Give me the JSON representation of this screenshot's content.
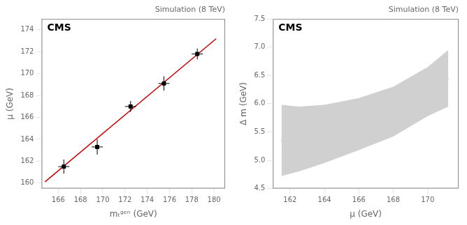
{
  "chart_data": [
    {
      "type": "scatter",
      "title": "Simulation (8 TeV)",
      "annotations": [
        "CMS"
      ],
      "x_label": "mₜᵍᵉⁿ (GeV)",
      "y_label": "μ (GeV)",
      "series": [
        {
          "type": "scatter",
          "marker": "square",
          "color": "#000000",
          "x": [
            166.5,
            169.5,
            172.5,
            175.5,
            178.5
          ],
          "values": [
            161.5,
            163.3,
            167.0,
            169.1,
            171.8
          ],
          "xerr": [
            0.5,
            0.5,
            0.5,
            0.5,
            0.5
          ],
          "yerr": [
            0.65,
            0.7,
            0.5,
            0.65,
            0.5
          ]
        },
        {
          "type": "line",
          "line_style": "solid",
          "color": "#cc0000",
          "x": [
            164.8,
            180.2
          ],
          "values": [
            160.1,
            173.2
          ]
        }
      ],
      "xlim": [
        164.5,
        181.0
      ],
      "ylim": [
        159.5,
        175.0
      ],
      "xticks": [
        166,
        168,
        170,
        172,
        174,
        176,
        178,
        180
      ],
      "yticks": [
        160,
        162,
        164,
        166,
        168,
        170,
        172,
        174
      ],
      "grid": false
    },
    {
      "type": "line",
      "title": "Simulation (8 TeV)",
      "annotations": [
        "CMS"
      ],
      "x_label": "μ (GeV)",
      "y_label": "Δ m (GeV)",
      "series": [
        {
          "type": "band",
          "color": "#d0d0d0",
          "x": [
            161.5,
            162.5,
            164.0,
            166.0,
            168.0,
            170.0,
            171.2
          ],
          "lower": [
            4.72,
            4.8,
            4.95,
            5.18,
            5.42,
            5.78,
            5.95
          ],
          "upper": [
            5.98,
            5.95,
            5.98,
            6.1,
            6.3,
            6.65,
            6.95
          ]
        },
        {
          "type": "line",
          "line_style": "solid",
          "color": "#cc0000",
          "x": [
            161.5,
            162.5,
            164.0,
            166.0,
            168.0,
            170.0,
            171.2
          ],
          "values": [
            5.35,
            5.42,
            5.55,
            5.75,
            5.97,
            6.25,
            6.45
          ]
        }
      ],
      "xlim": [
        161.0,
        171.8
      ],
      "ylim": [
        4.5,
        7.5
      ],
      "xticks": [
        162,
        164,
        166,
        168,
        170
      ],
      "yticks": [
        4.5,
        {
          "value": 5.0,
          "label": "5.0"
        },
        5.5,
        {
          "value": 6.0,
          "label": "6.0"
        },
        6.5,
        {
          "value": 7.0,
          "label": "7.0"
        },
        7.5
      ],
      "grid": false
    }
  ]
}
